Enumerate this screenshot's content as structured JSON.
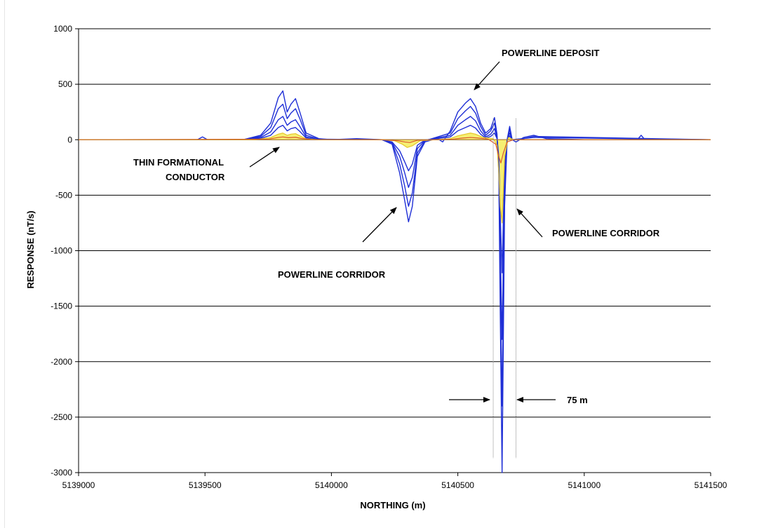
{
  "chart_data": {
    "type": "line",
    "title": "",
    "xlabel": "NORTHING (m)",
    "ylabel": "RESPONSE (nT/s)",
    "xlim": [
      5139000,
      5141500
    ],
    "ylim": [
      -3000,
      1000
    ],
    "x_ticks": [
      "5139000",
      "5139500",
      "5140000",
      "5140500",
      "5141000",
      "5141500"
    ],
    "y_ticks": [
      "1000",
      "500",
      "0",
      "-500",
      "-1000",
      "-1500",
      "-2000",
      "-2500",
      "-3000"
    ],
    "grid": "horizontal",
    "colors": {
      "early_channels": "#1f2fd6",
      "mid_fill": "#f5ee6a",
      "late_channels": "#d9572b",
      "grid": "#000000"
    },
    "series": [
      {
        "group": "early",
        "x": [
          5139000,
          5139470,
          5139490,
          5139510,
          5139650,
          5139720,
          5139760,
          5139790,
          5139808,
          5139825,
          5139840,
          5139858,
          5139875,
          5139900,
          5139950,
          5140000,
          5140100,
          5140200,
          5140240,
          5140270,
          5140290,
          5140305,
          5140320,
          5140340,
          5140370,
          5140400,
          5140420,
          5140440,
          5140470,
          5140500,
          5140530,
          5140550,
          5140570,
          5140590,
          5140610,
          5140630,
          5140645,
          5140655,
          5140662,
          5140668,
          5140675,
          5140685,
          5140695,
          5140705,
          5140715,
          5140730,
          5140760,
          5140800,
          5140850,
          5141000,
          5141210,
          5141225,
          5141240,
          5141400,
          5141500
        ],
        "y": [
          0,
          0,
          25,
          0,
          0,
          40,
          150,
          380,
          440,
          250,
          320,
          370,
          250,
          60,
          10,
          0,
          10,
          0,
          -40,
          -300,
          -550,
          -740,
          -600,
          -150,
          -20,
          0,
          10,
          -20,
          80,
          250,
          330,
          370,
          300,
          150,
          60,
          100,
          200,
          50,
          -300,
          -1600,
          -3000,
          -600,
          0,
          120,
          0,
          -20,
          20,
          40,
          10,
          0,
          0,
          40,
          0,
          0,
          0
        ]
      },
      {
        "group": "early",
        "x": [
          5139000,
          5139650,
          5139720,
          5139760,
          5139790,
          5139808,
          5139825,
          5139840,
          5139858,
          5139875,
          5139900,
          5139950,
          5140200,
          5140240,
          5140270,
          5140290,
          5140305,
          5140320,
          5140340,
          5140370,
          5140470,
          5140500,
          5140530,
          5140550,
          5140570,
          5140590,
          5140610,
          5140630,
          5140645,
          5140655,
          5140662,
          5140668,
          5140675,
          5140685,
          5140695,
          5140705,
          5140715,
          5140760,
          5140800,
          5141500
        ],
        "y": [
          0,
          0,
          30,
          110,
          280,
          320,
          190,
          240,
          280,
          190,
          40,
          5,
          0,
          -30,
          -220,
          -420,
          -600,
          -480,
          -120,
          -10,
          60,
          190,
          260,
          300,
          240,
          120,
          40,
          80,
          150,
          30,
          -250,
          -1300,
          -2400,
          -500,
          0,
          90,
          0,
          10,
          30,
          0
        ]
      },
      {
        "group": "early",
        "x": [
          5139000,
          5139650,
          5139720,
          5139760,
          5139790,
          5139808,
          5139825,
          5139840,
          5139858,
          5139875,
          5139900,
          5139950,
          5140200,
          5140240,
          5140270,
          5140290,
          5140305,
          5140320,
          5140340,
          5140370,
          5140470,
          5140500,
          5140530,
          5140550,
          5140570,
          5140590,
          5140610,
          5140630,
          5140645,
          5140655,
          5140662,
          5140668,
          5140675,
          5140685,
          5140695,
          5140705,
          5140715,
          5140800,
          5141500
        ],
        "y": [
          0,
          0,
          20,
          70,
          180,
          210,
          130,
          160,
          180,
          120,
          25,
          3,
          0,
          -25,
          -150,
          -300,
          -430,
          -340,
          -80,
          -5,
          40,
          130,
          180,
          210,
          170,
          80,
          25,
          50,
          100,
          20,
          -200,
          -1000,
          -1800,
          -400,
          0,
          60,
          0,
          20,
          0
        ]
      },
      {
        "group": "early",
        "x": [
          5139000,
          5139650,
          5139720,
          5139760,
          5139790,
          5139808,
          5139825,
          5139840,
          5139858,
          5139875,
          5139900,
          5139950,
          5140200,
          5140240,
          5140270,
          5140290,
          5140305,
          5140320,
          5140340,
          5140370,
          5140470,
          5140500,
          5140530,
          5140550,
          5140570,
          5140590,
          5140610,
          5140630,
          5140645,
          5140655,
          5140662,
          5140668,
          5140675,
          5140685,
          5140695,
          5140705,
          5140715,
          5141500
        ],
        "y": [
          0,
          0,
          12,
          40,
          110,
          130,
          80,
          100,
          110,
          75,
          15,
          2,
          0,
          -20,
          -100,
          -200,
          -280,
          -220,
          -50,
          -3,
          25,
          80,
          110,
          130,
          105,
          50,
          15,
          30,
          60,
          10,
          -150,
          -700,
          -1200,
          -250,
          0,
          35,
          0,
          0
        ]
      },
      {
        "group": "mid",
        "x": [
          5139000,
          5139700,
          5139760,
          5139790,
          5139808,
          5139825,
          5139840,
          5139858,
          5139875,
          5139900,
          5139950,
          5140200,
          5140250,
          5140280,
          5140300,
          5140320,
          5140350,
          5140470,
          5140500,
          5140530,
          5140550,
          5140570,
          5140600,
          5140640,
          5140655,
          5140662,
          5140668,
          5140675,
          5140685,
          5140700,
          5140720,
          5141500
        ],
        "y": [
          0,
          0,
          20,
          50,
          60,
          40,
          50,
          55,
          35,
          8,
          0,
          0,
          -10,
          -40,
          -70,
          -55,
          -10,
          10,
          35,
          50,
          60,
          50,
          20,
          10,
          -50,
          -300,
          -600,
          -750,
          -150,
          20,
          0,
          0
        ]
      },
      {
        "group": "late",
        "x": [
          5139000,
          5139750,
          5139790,
          5139808,
          5139830,
          5139858,
          5139880,
          5139920,
          5140200,
          5140260,
          5140290,
          5140310,
          5140340,
          5140480,
          5140520,
          5140550,
          5140580,
          5140620,
          5140650,
          5140662,
          5140670,
          5140680,
          5140695,
          5140720,
          5141500
        ],
        "y": [
          0,
          5,
          20,
          25,
          18,
          22,
          12,
          2,
          0,
          -8,
          -20,
          -25,
          -5,
          5,
          15,
          20,
          15,
          5,
          -40,
          -150,
          -210,
          -120,
          -20,
          0,
          0
        ]
      }
    ],
    "boundary_lines_x": [
      5140640,
      5140730
    ],
    "annotations": [
      {
        "text": "POWERLINE DEPOSIT"
      },
      {
        "text": "THIN FORMATIONAL"
      },
      {
        "text": "CONDUCTOR"
      },
      {
        "text": "POWERLINE CORRIDOR"
      },
      {
        "text": "POWERLINE CORRIDOR"
      },
      {
        "text": "75 m"
      }
    ]
  }
}
